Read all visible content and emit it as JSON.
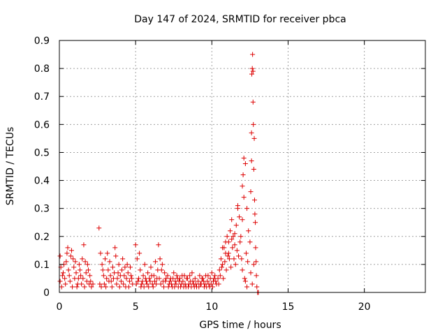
{
  "chart_data": {
    "type": "scatter",
    "title": "Day 147 of 2024, SRMTID for receiver pbca",
    "xlabel": "GPS time / hours",
    "ylabel": "SRMTID / TECUs",
    "xlim": [
      0,
      24
    ],
    "ylim": [
      0,
      0.9
    ],
    "x_ticks": [
      0,
      5,
      10,
      15,
      20
    ],
    "y_ticks": [
      0,
      0.1,
      0.2,
      0.3,
      0.4,
      0.5,
      0.6,
      0.7,
      0.8,
      0.9
    ],
    "x_tick_labels": [
      "0",
      "5",
      "10",
      "15",
      "20"
    ],
    "y_tick_labels": [
      "0",
      "0.1",
      "0.2",
      "0.3",
      "0.4",
      "0.5",
      "0.6",
      "0.7",
      "0.8",
      "0.9"
    ],
    "grid": true,
    "marker": "+",
    "marker_color": "#dd0000",
    "series": [
      {
        "name": "SRMTID",
        "points": [
          [
            0.05,
            0.13
          ],
          [
            0.1,
            0.09
          ],
          [
            0.2,
            0.06
          ],
          [
            0.3,
            0.1
          ],
          [
            0.4,
            0.03
          ],
          [
            0.5,
            0.14
          ],
          [
            0.55,
            0.16
          ],
          [
            0.6,
            0.08
          ],
          [
            0.7,
            0.04
          ],
          [
            0.8,
            0.15
          ],
          [
            0.9,
            0.12
          ],
          [
            1.0,
            0.05
          ],
          [
            1.1,
            0.07
          ],
          [
            1.2,
            0.03
          ],
          [
            1.3,
            0.1
          ],
          [
            1.4,
            0.06
          ],
          [
            1.5,
            0.12
          ],
          [
            1.6,
            0.17
          ],
          [
            1.7,
            0.11
          ],
          [
            1.8,
            0.04
          ],
          [
            1.9,
            0.08
          ],
          [
            2.0,
            0.06
          ],
          [
            2.1,
            0.02
          ],
          [
            2.2,
            0.03
          ],
          [
            0.05,
            0.04
          ],
          [
            0.15,
            0.02
          ],
          [
            0.25,
            0.07
          ],
          [
            0.35,
            0.05
          ],
          [
            0.45,
            0.11
          ],
          [
            0.65,
            0.06
          ],
          [
            0.75,
            0.13
          ],
          [
            0.85,
            0.02
          ],
          [
            0.95,
            0.09
          ],
          [
            1.05,
            0.11
          ],
          [
            1.15,
            0.02
          ],
          [
            1.25,
            0.05
          ],
          [
            1.35,
            0.08
          ],
          [
            1.45,
            0.03
          ],
          [
            1.55,
            0.05
          ],
          [
            1.65,
            0.02
          ],
          [
            1.75,
            0.07
          ],
          [
            1.85,
            0.1
          ],
          [
            1.95,
            0.03
          ],
          [
            2.05,
            0.04
          ],
          [
            2.6,
            0.23
          ],
          [
            2.7,
            0.14
          ],
          [
            2.8,
            0.1
          ],
          [
            2.9,
            0.06
          ],
          [
            3.0,
            0.12
          ],
          [
            3.1,
            0.05
          ],
          [
            3.2,
            0.08
          ],
          [
            3.3,
            0.11
          ],
          [
            3.4,
            0.04
          ],
          [
            3.5,
            0.09
          ],
          [
            3.6,
            0.07
          ],
          [
            3.7,
            0.13
          ],
          [
            3.8,
            0.05
          ],
          [
            3.9,
            0.1
          ],
          [
            4.0,
            0.06
          ],
          [
            4.1,
            0.08
          ],
          [
            4.2,
            0.03
          ],
          [
            4.3,
            0.09
          ],
          [
            4.4,
            0.05
          ],
          [
            4.5,
            0.07
          ],
          [
            4.6,
            0.04
          ],
          [
            4.7,
            0.06
          ],
          [
            4.8,
            0.03
          ],
          [
            2.65,
            0.03
          ],
          [
            2.75,
            0.02
          ],
          [
            2.85,
            0.08
          ],
          [
            2.95,
            0.03
          ],
          [
            3.05,
            0.02
          ],
          [
            3.15,
            0.14
          ],
          [
            3.25,
            0.04
          ],
          [
            3.35,
            0.06
          ],
          [
            3.45,
            0.02
          ],
          [
            3.55,
            0.05
          ],
          [
            3.65,
            0.16
          ],
          [
            3.75,
            0.03
          ],
          [
            3.85,
            0.07
          ],
          [
            3.95,
            0.02
          ],
          [
            4.05,
            0.04
          ],
          [
            4.15,
            0.12
          ],
          [
            4.25,
            0.06
          ],
          [
            4.35,
            0.02
          ],
          [
            4.45,
            0.1
          ],
          [
            4.55,
            0.02
          ],
          [
            4.65,
            0.09
          ],
          [
            4.75,
            0.05
          ],
          [
            5.0,
            0.17
          ],
          [
            5.1,
            0.12
          ],
          [
            5.2,
            0.05
          ],
          [
            5.3,
            0.08
          ],
          [
            5.4,
            0.03
          ],
          [
            5.5,
            0.06
          ],
          [
            5.6,
            0.1
          ],
          [
            5.7,
            0.04
          ],
          [
            5.8,
            0.07
          ],
          [
            5.9,
            0.05
          ],
          [
            6.0,
            0.09
          ],
          [
            6.1,
            0.03
          ],
          [
            6.2,
            0.06
          ],
          [
            6.3,
            0.11
          ],
          [
            6.4,
            0.05
          ],
          [
            6.5,
            0.17
          ],
          [
            6.6,
            0.12
          ],
          [
            6.7,
            0.08
          ],
          [
            6.8,
            0.04
          ],
          [
            6.9,
            0.07
          ],
          [
            7.0,
            0.05
          ],
          [
            5.05,
            0.03
          ],
          [
            5.15,
            0.04
          ],
          [
            5.25,
            0.14
          ],
          [
            5.35,
            0.02
          ],
          [
            5.45,
            0.04
          ],
          [
            5.55,
            0.02
          ],
          [
            5.65,
            0.05
          ],
          [
            5.75,
            0.03
          ],
          [
            5.85,
            0.02
          ],
          [
            5.95,
            0.04
          ],
          [
            6.05,
            0.06
          ],
          [
            6.15,
            0.02
          ],
          [
            6.25,
            0.04
          ],
          [
            6.35,
            0.03
          ],
          [
            6.45,
            0.08
          ],
          [
            6.55,
            0.05
          ],
          [
            6.65,
            0.03
          ],
          [
            6.75,
            0.1
          ],
          [
            6.85,
            0.02
          ],
          [
            6.95,
            0.04
          ],
          [
            7.1,
            0.06
          ],
          [
            7.2,
            0.03
          ],
          [
            7.3,
            0.05
          ],
          [
            7.4,
            0.02
          ],
          [
            7.5,
            0.07
          ],
          [
            7.6,
            0.04
          ],
          [
            7.7,
            0.06
          ],
          [
            7.8,
            0.02
          ],
          [
            7.9,
            0.05
          ],
          [
            8.0,
            0.03
          ],
          [
            8.1,
            0.04
          ],
          [
            8.2,
            0.06
          ],
          [
            8.3,
            0.02
          ],
          [
            8.4,
            0.05
          ],
          [
            8.5,
            0.03
          ],
          [
            8.6,
            0.04
          ],
          [
            8.7,
            0.07
          ],
          [
            8.8,
            0.03
          ],
          [
            8.9,
            0.05
          ],
          [
            9.0,
            0.02
          ],
          [
            7.15,
            0.02
          ],
          [
            7.25,
            0.04
          ],
          [
            7.35,
            0.03
          ],
          [
            7.45,
            0.05
          ],
          [
            7.55,
            0.02
          ],
          [
            7.65,
            0.03
          ],
          [
            7.75,
            0.05
          ],
          [
            7.85,
            0.04
          ],
          [
            7.95,
            0.02
          ],
          [
            8.05,
            0.06
          ],
          [
            8.15,
            0.02
          ],
          [
            8.25,
            0.03
          ],
          [
            8.35,
            0.05
          ],
          [
            8.45,
            0.02
          ],
          [
            8.55,
            0.06
          ],
          [
            8.65,
            0.02
          ],
          [
            8.75,
            0.04
          ],
          [
            8.85,
            0.02
          ],
          [
            8.95,
            0.03
          ],
          [
            9.1,
            0.04
          ],
          [
            9.2,
            0.06
          ],
          [
            9.3,
            0.03
          ],
          [
            9.4,
            0.05
          ],
          [
            9.5,
            0.02
          ],
          [
            9.6,
            0.06
          ],
          [
            9.7,
            0.04
          ],
          [
            9.8,
            0.03
          ],
          [
            9.9,
            0.05
          ],
          [
            10.0,
            0.07
          ],
          [
            10.1,
            0.04
          ],
          [
            10.2,
            0.06
          ],
          [
            10.3,
            0.03
          ],
          [
            9.15,
            0.02
          ],
          [
            9.25,
            0.03
          ],
          [
            9.35,
            0.05
          ],
          [
            9.45,
            0.04
          ],
          [
            9.55,
            0.03
          ],
          [
            9.65,
            0.02
          ],
          [
            9.75,
            0.06
          ],
          [
            9.85,
            0.02
          ],
          [
            9.95,
            0.03
          ],
          [
            10.05,
            0.02
          ],
          [
            10.15,
            0.05
          ],
          [
            10.25,
            0.04
          ],
          [
            10.4,
            0.05
          ],
          [
            10.5,
            0.08
          ],
          [
            10.6,
            0.12
          ],
          [
            10.7,
            0.1
          ],
          [
            10.8,
            0.16
          ],
          [
            10.9,
            0.14
          ],
          [
            11.0,
            0.2
          ],
          [
            11.1,
            0.18
          ],
          [
            11.2,
            0.22
          ],
          [
            11.3,
            0.26
          ],
          [
            11.4,
            0.2
          ],
          [
            11.5,
            0.17
          ],
          [
            11.6,
            0.24
          ],
          [
            11.7,
            0.31
          ],
          [
            11.8,
            0.27
          ],
          [
            11.9,
            0.2
          ],
          [
            12.0,
            0.26
          ],
          [
            12.05,
            0.42
          ],
          [
            12.1,
            0.48
          ],
          [
            12.2,
            0.46
          ],
          [
            12.3,
            0.3
          ],
          [
            12.4,
            0.22
          ],
          [
            10.45,
            0.03
          ],
          [
            10.55,
            0.06
          ],
          [
            10.65,
            0.09
          ],
          [
            10.75,
            0.05
          ],
          [
            10.85,
            0.11
          ],
          [
            10.95,
            0.08
          ],
          [
            11.05,
            0.13
          ],
          [
            11.15,
            0.12
          ],
          [
            11.25,
            0.09
          ],
          [
            11.35,
            0.16
          ],
          [
            11.45,
            0.12
          ],
          [
            11.55,
            0.1
          ],
          [
            11.65,
            0.15
          ],
          [
            11.75,
            0.13
          ],
          [
            11.85,
            0.18
          ],
          [
            11.95,
            0.12
          ],
          [
            12.0,
            0.08
          ],
          [
            12.15,
            0.05
          ],
          [
            12.25,
            0.14
          ],
          [
            12.35,
            0.11
          ],
          [
            10.7,
            0.16
          ],
          [
            10.9,
            0.18
          ],
          [
            11.1,
            0.14
          ],
          [
            11.3,
            0.19
          ],
          [
            11.5,
            0.21
          ],
          [
            11.7,
            0.3
          ],
          [
            12.0,
            0.38
          ],
          [
            12.1,
            0.34
          ],
          [
            12.2,
            0.04
          ],
          [
            12.3,
            0.02
          ],
          [
            12.5,
            0.18
          ],
          [
            12.55,
            0.36
          ],
          [
            12.6,
            0.47
          ],
          [
            12.6,
            0.57
          ],
          [
            12.62,
            0.78
          ],
          [
            12.65,
            0.8
          ],
          [
            12.67,
            0.85
          ],
          [
            12.7,
            0.79
          ],
          [
            12.7,
            0.68
          ],
          [
            12.72,
            0.6
          ],
          [
            12.75,
            0.44
          ],
          [
            12.78,
            0.55
          ],
          [
            12.8,
            0.33
          ],
          [
            12.82,
            0.28
          ],
          [
            12.85,
            0.25
          ],
          [
            12.87,
            0.16
          ],
          [
            12.9,
            0.11
          ],
          [
            12.92,
            0.06
          ],
          [
            12.95,
            0.02
          ],
          [
            13.0,
            0.0
          ],
          [
            13.05,
            0.0
          ],
          [
            12.55,
            0.07
          ],
          [
            12.65,
            0.03
          ],
          [
            12.75,
            0.1
          ]
        ]
      }
    ]
  }
}
